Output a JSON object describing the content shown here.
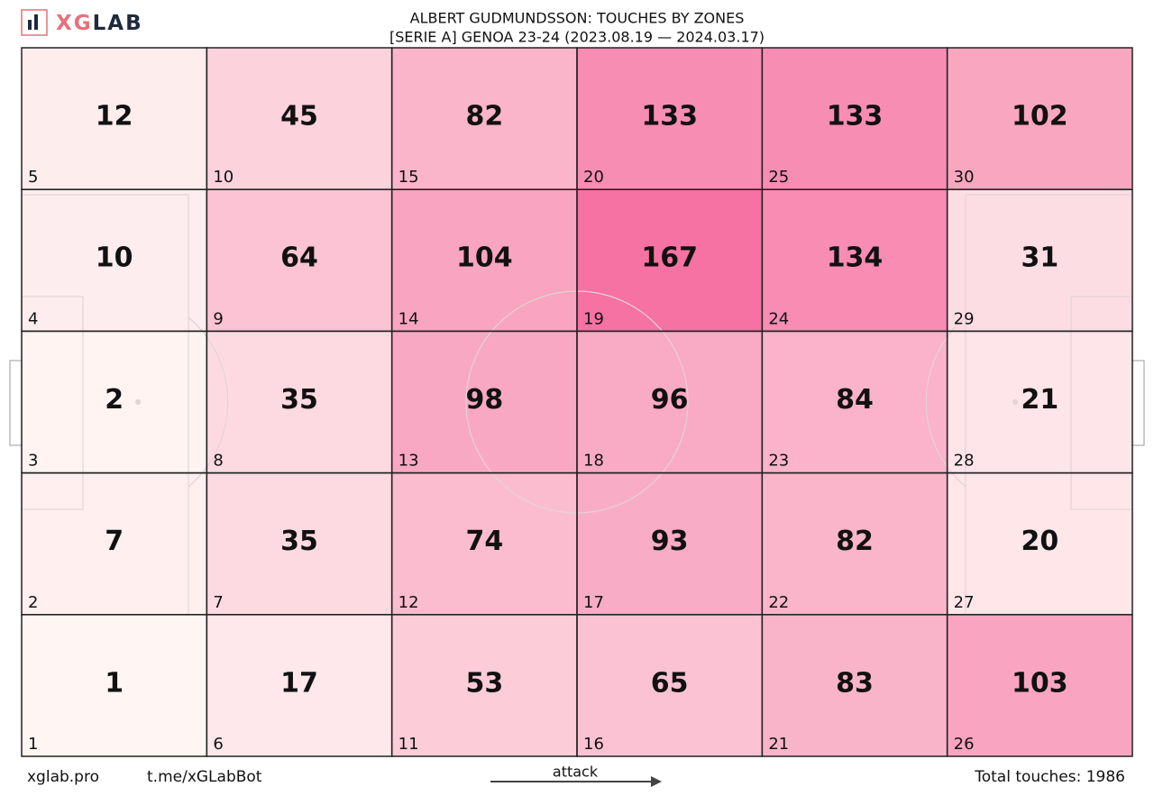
{
  "chart_data": {
    "type": "heatmap",
    "title": "ALBERT GUDMUNDSSON: TOUCHES BY ZONES",
    "subtitle": "[SERIE A] GENOA 23-24 (2023.08.19 — 2024.03.17)",
    "rows": [
      {
        "zones": [
          "5",
          "10",
          "15",
          "20",
          "25",
          "30"
        ],
        "values": [
          12,
          45,
          82,
          133,
          133,
          102
        ]
      },
      {
        "zones": [
          "4",
          "9",
          "14",
          "19",
          "24",
          "29"
        ],
        "values": [
          10,
          64,
          104,
          167,
          134,
          31
        ]
      },
      {
        "zones": [
          "3",
          "8",
          "13",
          "18",
          "23",
          "28"
        ],
        "values": [
          2,
          35,
          98,
          96,
          84,
          21
        ]
      },
      {
        "zones": [
          "2",
          "7",
          "12",
          "17",
          "22",
          "27"
        ],
        "values": [
          7,
          35,
          74,
          93,
          82,
          20
        ]
      },
      {
        "zones": [
          "1",
          "6",
          "11",
          "16",
          "21",
          "26"
        ],
        "values": [
          1,
          17,
          53,
          65,
          83,
          103
        ]
      }
    ],
    "color_range": [
      "#fff5f2",
      "#f5669a"
    ],
    "direction_label": "attack",
    "total_label": "Total touches: 1986"
  },
  "header": {
    "logo_accent": "XG",
    "logo_rest": "LAB"
  },
  "footer": {
    "site": "xglab.pro",
    "bot": "t.me/xGLabBot"
  }
}
